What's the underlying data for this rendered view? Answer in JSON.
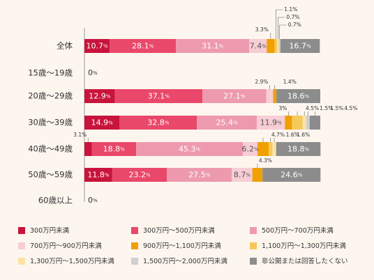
{
  "chart_data": {
    "type": "bar",
    "stacked": true,
    "orientation": "horizontal",
    "unit": "%",
    "xlim": [
      0,
      100
    ],
    "categories": [
      "全体",
      "15歳～19歳",
      "20歳～29歳",
      "30歳～39歳",
      "40歳～49歳",
      "50歳～59歳",
      "60歳以上"
    ],
    "series": [
      {
        "name": "300万円未満",
        "color": "#c8143c",
        "values": [
          10.7,
          0,
          12.9,
          14.9,
          3.1,
          11.8,
          0
        ]
      },
      {
        "name": "300万円～500万円未満",
        "color": "#e9486a",
        "values": [
          28.1,
          0,
          37.1,
          32.8,
          18.8,
          23.2,
          0
        ]
      },
      {
        "name": "500万円～700万円未満",
        "color": "#ee9aae",
        "values": [
          31.1,
          0,
          27.1,
          25.4,
          45.3,
          27.5,
          0
        ]
      },
      {
        "name": "700万円～900万円未満",
        "color": "#f7cdd6",
        "values": [
          7.4,
          0,
          2.9,
          11.9,
          6.2,
          8.7,
          0
        ]
      },
      {
        "name": "900万円～1,100万円未満",
        "color": "#f0a000",
        "values": [
          3.3,
          0,
          1.4,
          3.0,
          4.7,
          4.3,
          0
        ]
      },
      {
        "name": "1,100万円～1,300万円未満",
        "color": "#f7c85a",
        "values": [
          1.1,
          0,
          0,
          4.5,
          1.6,
          0,
          0
        ]
      },
      {
        "name": "1,300万円～1,500万円未満",
        "color": "#fbe3a6",
        "values": [
          0.7,
          0,
          0,
          1.5,
          1.6,
          0,
          0
        ]
      },
      {
        "name": "1,500万円～2,000万円未満",
        "color": "#cfcfcf",
        "values": [
          0.7,
          0,
          0,
          1.5,
          0,
          0,
          0
        ]
      },
      {
        "name": "非公開または回答したくない",
        "color": "#8c8c8c",
        "values": [
          16.7,
          0,
          18.6,
          4.5,
          18.8,
          24.6,
          0
        ]
      }
    ],
    "zero_labels": [
      "0%",
      "0%"
    ],
    "legend": {
      "position": "bottom",
      "columns": 3
    }
  }
}
